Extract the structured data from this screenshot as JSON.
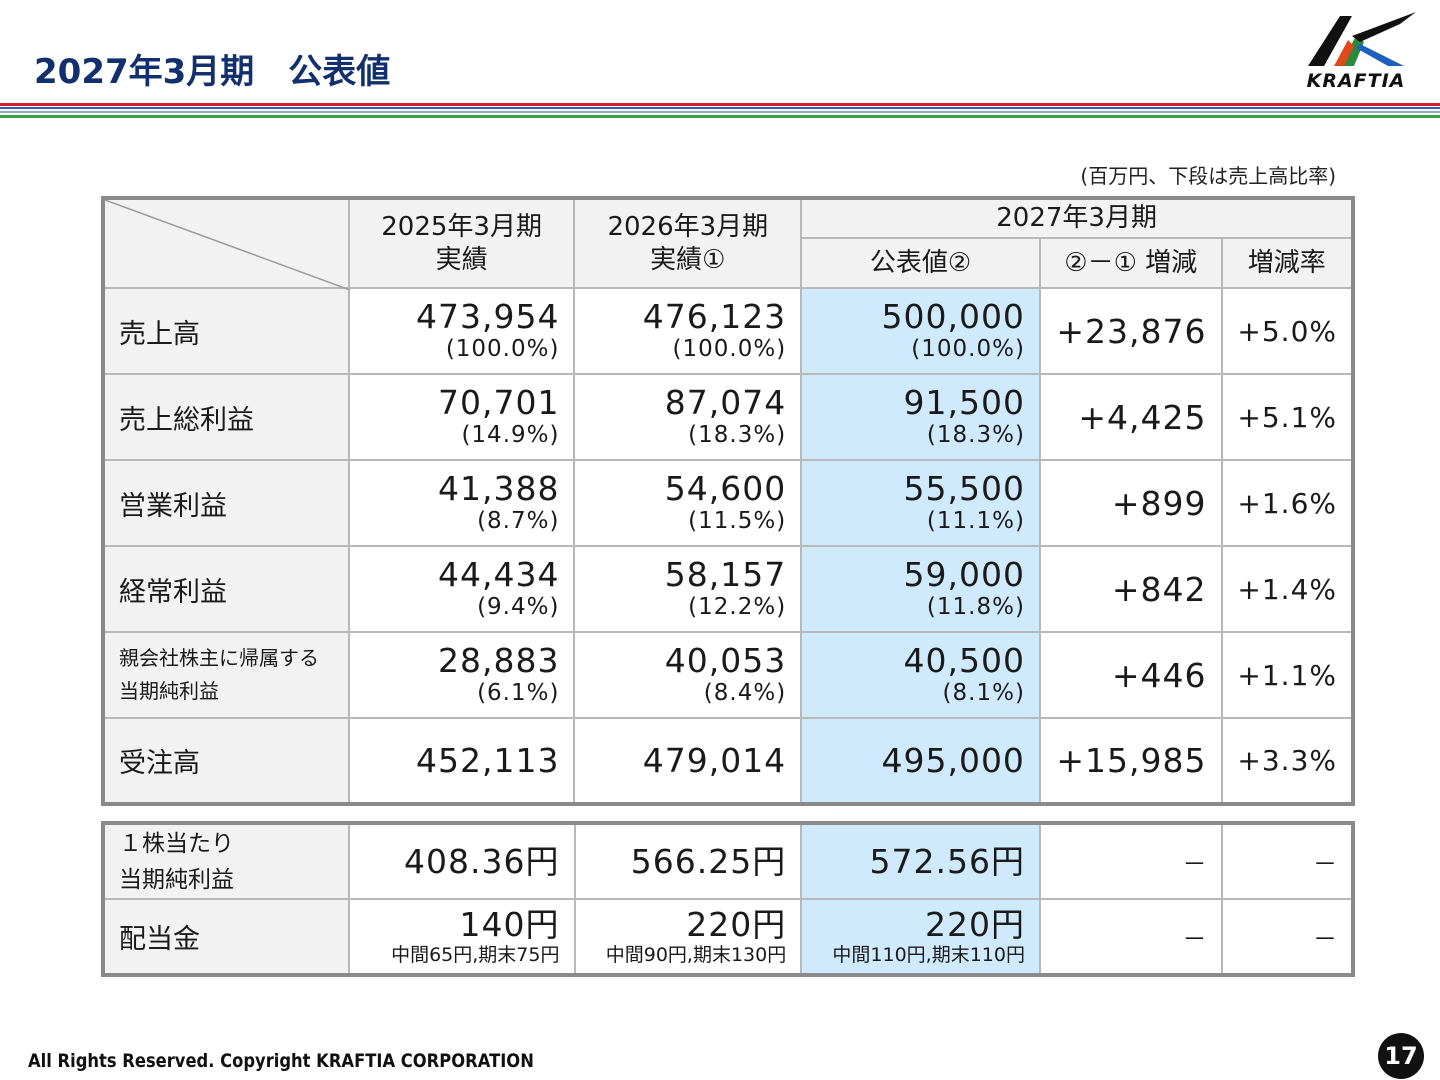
{
  "page": {
    "title": "2027年3月期　公表値",
    "unit_note": "(百万円、下段は売上高比率)",
    "footer": "All Rights Reserved. Copyright KRAFTIA CORPORATION",
    "page_number": "17",
    "colors": {
      "title": "#12306e",
      "highlight": "#cfeafd",
      "stripe_red": "#d0202a",
      "stripe_blue": "#2a5cb8",
      "stripe_green": "#3aa040"
    }
  },
  "logo": {
    "text": "KRAFTIA"
  },
  "table": {
    "headers": {
      "fy2025_line1": "2025年3月期",
      "fy2025_line2": "実績",
      "fy2026_line1": "2026年3月期",
      "fy2026_line2": "実績①",
      "fy2027": "2027年3月期",
      "forecast": "公表値②",
      "diff": "②－① 増減",
      "rate": "増減率"
    },
    "rows": [
      {
        "label": "売上高",
        "v2025": "473,954",
        "p2025": "(100.0%)",
        "v2026": "476,123",
        "p2026": "(100.0%)",
        "v2027": "500,000",
        "p2027": "(100.0%)",
        "diff": "+23,876",
        "rate": "+5.0%"
      },
      {
        "label": "売上総利益",
        "v2025": "70,701",
        "p2025": "(14.9%)",
        "v2026": "87,074",
        "p2026": "(18.3%)",
        "v2027": "91,500",
        "p2027": "(18.3%)",
        "diff": "+4,425",
        "rate": "+5.1%"
      },
      {
        "label": "営業利益",
        "v2025": "41,388",
        "p2025": "(8.7%)",
        "v2026": "54,600",
        "p2026": "(11.5%)",
        "v2027": "55,500",
        "p2027": "(11.1%)",
        "diff": "+899",
        "rate": "+1.6%"
      },
      {
        "label": "経常利益",
        "v2025": "44,434",
        "p2025": "(9.4%)",
        "v2026": "58,157",
        "p2026": "(12.2%)",
        "v2027": "59,000",
        "p2027": "(11.8%)",
        "diff": "+842",
        "rate": "+1.4%"
      },
      {
        "label_line1": "親会社株主に帰属する",
        "label_line2": "当期純利益",
        "v2025": "28,883",
        "p2025": "(6.1%)",
        "v2026": "40,053",
        "p2026": "(8.4%)",
        "v2027": "40,500",
        "p2027": "(8.1%)",
        "diff": "+446",
        "rate": "+1.1%"
      },
      {
        "label": "受注高",
        "v2025": "452,113",
        "v2026": "479,014",
        "v2027": "495,000",
        "diff": "+15,985",
        "rate": "+3.3%"
      }
    ]
  },
  "sub_table": {
    "eps": {
      "label_line1": "１株当たり",
      "label_line2": "当期純利益",
      "v2025": "408.36円",
      "v2026": "566.25円",
      "v2027": "572.56円",
      "diff": "－",
      "rate": "－"
    },
    "dividend": {
      "label": "配当金",
      "v2025": "140円",
      "s2025": "中間65円,期末75円",
      "v2026": "220円",
      "s2026": "中間90円,期末130円",
      "v2027": "220円",
      "s2027": "中間110円,期末110円",
      "diff": "－",
      "rate": "－"
    }
  }
}
